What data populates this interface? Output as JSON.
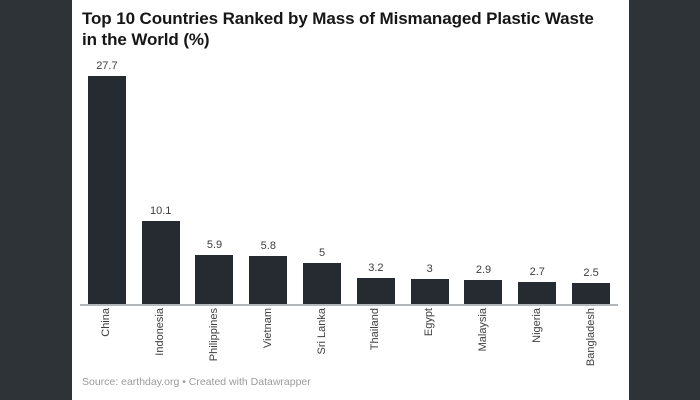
{
  "page": {
    "background_color": "#2e3338",
    "panel_color": "#ffffff"
  },
  "header": {
    "title_line1": "Top 10 Countries Ranked by Mass of Mismanaged Plastic Waste",
    "title_line2": "in the World (%)"
  },
  "footer": {
    "source_text": "Source: earthday.org • Created with Datawrapper"
  },
  "chart_data": {
    "type": "bar",
    "title": "Top 10 Countries Ranked by Mass of Mismanaged Plastic Waste in the World (%)",
    "categories": [
      "China",
      "Indonesia",
      "Philippines",
      "Vietnam",
      "Sri Lanka",
      "Thailand",
      "Egypt",
      "Malaysia",
      "Nigeria",
      "Bangladesh"
    ],
    "values": [
      27.7,
      10.1,
      5.9,
      5.8,
      5,
      3.2,
      3,
      2.9,
      2.7,
      2.5
    ],
    "value_labels": [
      "27.7",
      "10.1",
      "5.9",
      "5.8",
      "5",
      "3.2",
      "3",
      "2.9",
      "2.7",
      "2.5"
    ],
    "xlabel": "",
    "ylabel": "",
    "ylim": [
      0,
      30
    ],
    "grid": false,
    "legend": "none",
    "orientation": "vertical",
    "x_label_rotation": -90,
    "bar_color": "#262b31",
    "axis_color": "#b4b7ba",
    "source": "earthday.org",
    "attribution": "Created with Datawrapper"
  }
}
